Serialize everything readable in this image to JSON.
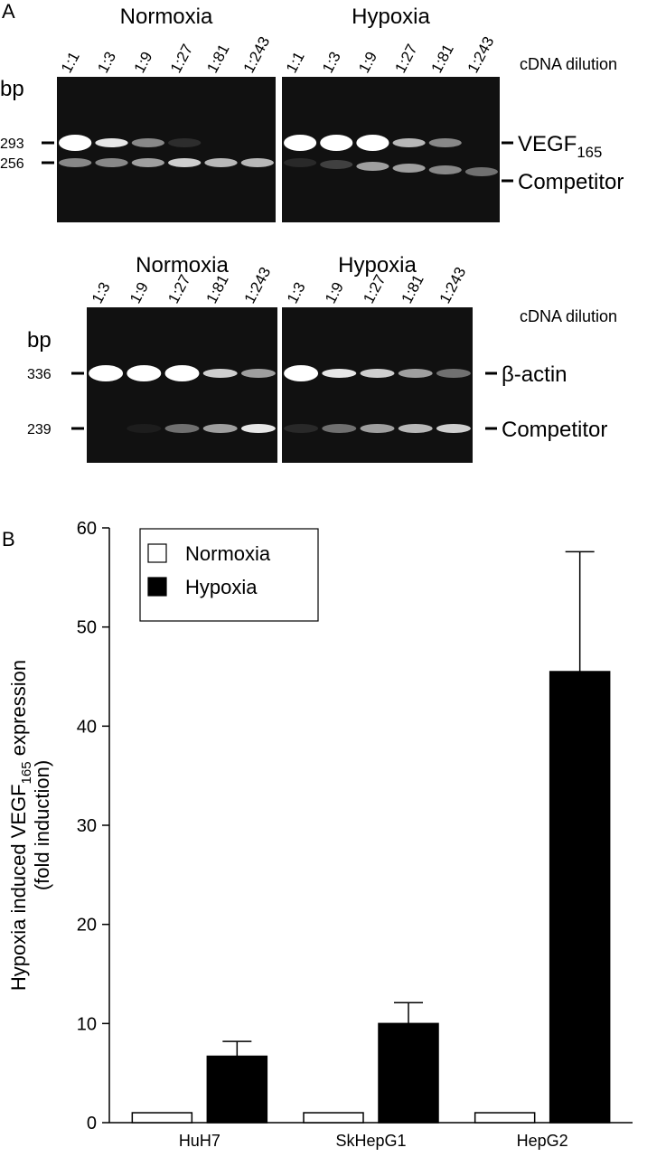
{
  "panel_a": {
    "label": "A",
    "gels": [
      {
        "conditions": [
          "Normoxia",
          "Hypoxia"
        ],
        "dilutions": [
          [
            "1:1",
            "1:3",
            "1:9",
            "1:27",
            "1:81",
            "1:243"
          ],
          [
            "1:1",
            "1:3",
            "1:9",
            "1:27",
            "1:81",
            "1:243"
          ]
        ],
        "dilution_label": "cDNA dilution",
        "unit": "bp",
        "markers": [
          293,
          256
        ],
        "bands": [
          {
            "text": "VEGF",
            "subscript": "165"
          },
          {
            "text": "Competitor"
          }
        ]
      },
      {
        "conditions": [
          "Normoxia",
          "Hypoxia"
        ],
        "dilutions": [
          [
            "1:3",
            "1:9",
            "1:27",
            "1:81",
            "1:243"
          ],
          [
            "1:3",
            "1:9",
            "1:27",
            "1:81",
            "1:243"
          ]
        ],
        "dilution_label": "cDNA dilution",
        "unit": "bp",
        "markers": [
          336,
          239
        ],
        "bands": [
          {
            "text": "β-actin"
          },
          {
            "text": "Competitor"
          }
        ]
      }
    ]
  },
  "chart_data": {
    "type": "bar",
    "panel_label": "B",
    "ylabel": {
      "before": "Hypoxia induced VEGF",
      "subscript": "165",
      "after": " expression",
      "line2": "(fold induction)"
    },
    "categories": [
      "HuH7",
      "SkHepG1",
      "HepG2"
    ],
    "series": [
      {
        "name": "Normoxia",
        "color": "#ffffff",
        "values": [
          1,
          1,
          1
        ]
      },
      {
        "name": "Hypoxia",
        "color": "#000000",
        "values": [
          6.7,
          10,
          45.5
        ],
        "errors": [
          1.5,
          2.1,
          12.1
        ]
      }
    ],
    "ylim": [
      0,
      60
    ],
    "yticks": [
      0,
      10,
      20,
      30,
      40,
      50,
      60
    ],
    "legend": "upper left"
  }
}
